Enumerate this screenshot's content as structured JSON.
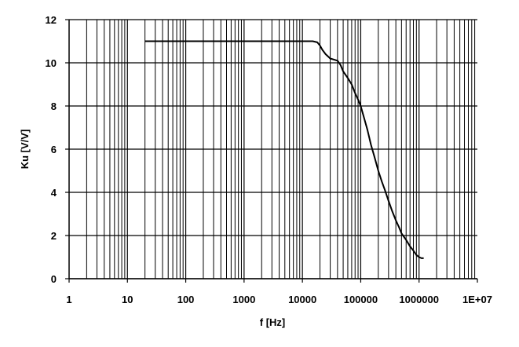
{
  "chart_data": {
    "type": "line",
    "xlabel": "f [Hz]",
    "ylabel": "Ku [V/V]",
    "x_scale": "log",
    "xlim": [
      1,
      10000000
    ],
    "ylim": [
      0,
      12
    ],
    "grid": true,
    "x_tick_labels": [
      "1",
      "10",
      "100",
      "1000",
      "10000",
      "100000",
      "1000000",
      "1E+07"
    ],
    "y_tick_labels": [
      "0",
      "2",
      "4",
      "6",
      "8",
      "10",
      "12"
    ],
    "series": [
      {
        "color": "#000000",
        "x": [
          20,
          50,
          100,
          500,
          1000,
          5000,
          10000,
          15000,
          18000,
          20000,
          22000,
          25000,
          30000,
          40000,
          45000,
          50000,
          60000,
          70000,
          80000,
          90000,
          100000,
          110000,
          130000,
          150000,
          170000,
          200000,
          230000,
          260000,
          300000,
          350000,
          400000,
          450000,
          500000,
          600000,
          700000,
          800000,
          900000,
          1000000,
          1100000,
          1200000
        ],
        "y": [
          11.0,
          11.0,
          11.0,
          11.0,
          11.0,
          11.0,
          11.0,
          11.0,
          10.95,
          10.8,
          10.6,
          10.4,
          10.2,
          10.1,
          9.9,
          9.6,
          9.3,
          9.0,
          8.6,
          8.3,
          8.0,
          7.6,
          6.9,
          6.2,
          5.7,
          5.0,
          4.5,
          4.1,
          3.6,
          3.1,
          2.7,
          2.4,
          2.1,
          1.8,
          1.5,
          1.3,
          1.1,
          1.0,
          0.95,
          0.95
        ]
      }
    ]
  }
}
